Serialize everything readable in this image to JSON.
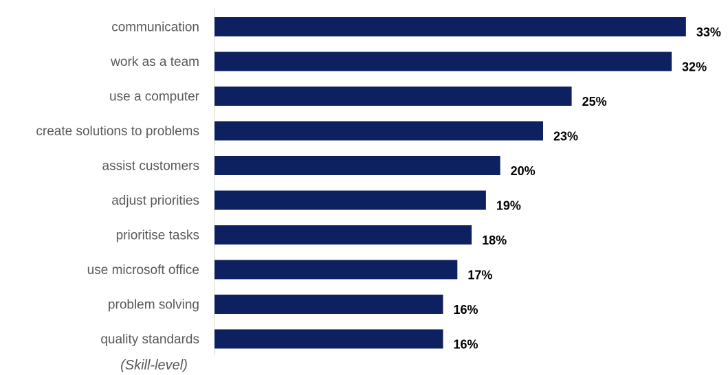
{
  "chart_data": {
    "type": "bar",
    "orientation": "horizontal",
    "categories": [
      "communication",
      "work as a team",
      "use a computer",
      "create solutions to problems",
      "assist customers",
      "adjust priorities",
      "prioritise tasks",
      "use microsoft office",
      "problem solving",
      "quality standards"
    ],
    "values": [
      33,
      32,
      25,
      23,
      20,
      19,
      18,
      17,
      16,
      16
    ],
    "value_labels": [
      "33%",
      "32%",
      "25%",
      "23%",
      "20%",
      "19%",
      "18%",
      "17%",
      "16%",
      "16%"
    ],
    "annotation": "(Skill-level)",
    "xlim": [
      0,
      33.2
    ],
    "grid": false,
    "legend": "none",
    "bar_color": "#0d2160",
    "axis_color": "#d9d9d9"
  }
}
